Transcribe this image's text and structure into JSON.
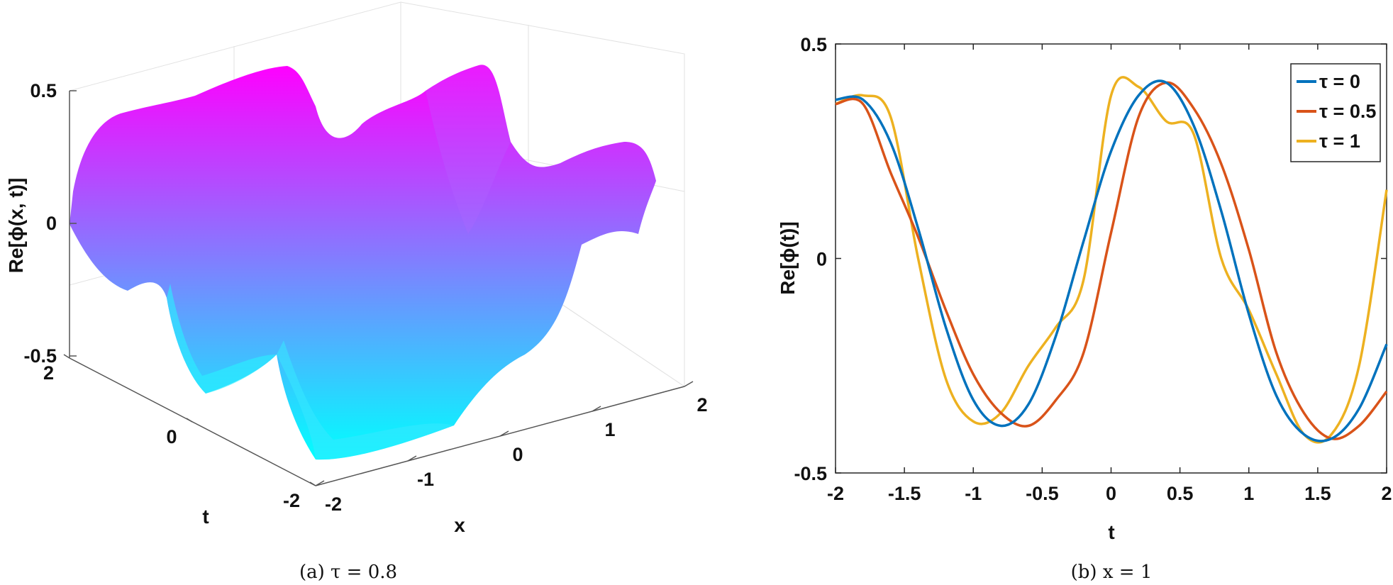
{
  "chart_data": [
    {
      "type": "surface",
      "panel": "(a)",
      "caption": "(a) τ = 0.8",
      "zlabel": "Re[ϕ(x, t)]",
      "xlabel": "x",
      "ylabel": "t",
      "xlim": [
        -2,
        2
      ],
      "ylim": [
        -2,
        2
      ],
      "zlim": [
        -0.5,
        0.5
      ],
      "x_ticks": [
        "-2",
        "-1",
        "0",
        "1",
        "2"
      ],
      "y_ticks": [
        "-2",
        "0",
        "2"
      ],
      "z_ticks": [
        "-0.5",
        "0",
        "0.5"
      ],
      "colormap": [
        "#00ffff",
        "#ff00ff"
      ],
      "grid": true
    },
    {
      "type": "line",
      "panel": "(b)",
      "caption": "(b) x = 1",
      "xlabel": "t",
      "ylabel": "Re[ϕ(t)]",
      "xlim": [
        -2,
        2
      ],
      "ylim": [
        -0.5,
        0.5
      ],
      "x_ticks": [
        "-2",
        "-1.5",
        "-1",
        "-0.5",
        "0",
        "0.5",
        "1",
        "1.5",
        "2"
      ],
      "y_ticks": [
        "-0.5",
        "0",
        "0.5"
      ],
      "legend_position": "top-right",
      "series": [
        {
          "name": "τ = 0",
          "color": "#0072bd",
          "x": [
            -2.0,
            -1.8,
            -1.6,
            -1.4,
            -1.2,
            -1.0,
            -0.8,
            -0.6,
            -0.4,
            -0.2,
            0.0,
            0.2,
            0.4,
            0.6,
            0.8,
            1.0,
            1.2,
            1.4,
            1.6,
            1.8,
            2.0
          ],
          "y": [
            0.37,
            0.37,
            0.27,
            0.07,
            -0.16,
            -0.33,
            -0.39,
            -0.34,
            -0.18,
            0.04,
            0.25,
            0.38,
            0.41,
            0.31,
            0.11,
            -0.13,
            -0.32,
            -0.41,
            -0.42,
            -0.35,
            -0.2
          ]
        },
        {
          "name": "τ = 0.5",
          "color": "#d95319",
          "x": [
            -2.0,
            -1.8,
            -1.6,
            -1.4,
            -1.2,
            -1.0,
            -0.8,
            -0.6,
            -0.4,
            -0.2,
            0.0,
            0.2,
            0.4,
            0.6,
            0.8,
            1.0,
            1.2,
            1.4,
            1.6,
            1.8,
            2.0
          ],
          "y": [
            0.36,
            0.36,
            0.2,
            0.05,
            -0.12,
            -0.27,
            -0.36,
            -0.39,
            -0.33,
            -0.22,
            0.06,
            0.33,
            0.41,
            0.35,
            0.22,
            0.02,
            -0.22,
            -0.36,
            -0.42,
            -0.39,
            -0.31
          ]
        },
        {
          "name": "τ = 1",
          "color": "#edb120",
          "x": [
            -2.0,
            -1.8,
            -1.6,
            -1.4,
            -1.2,
            -1.0,
            -0.8,
            -0.6,
            -0.4,
            -0.2,
            0.0,
            0.2,
            0.4,
            0.6,
            0.8,
            1.0,
            1.2,
            1.4,
            1.6,
            1.8,
            2.0
          ],
          "y": [
            0.36,
            0.38,
            0.33,
            0.0,
            -0.28,
            -0.38,
            -0.36,
            -0.25,
            -0.16,
            -0.05,
            0.38,
            0.4,
            0.32,
            0.29,
            0.0,
            -0.12,
            -0.27,
            -0.41,
            -0.41,
            -0.25,
            0.16
          ]
        }
      ]
    }
  ]
}
